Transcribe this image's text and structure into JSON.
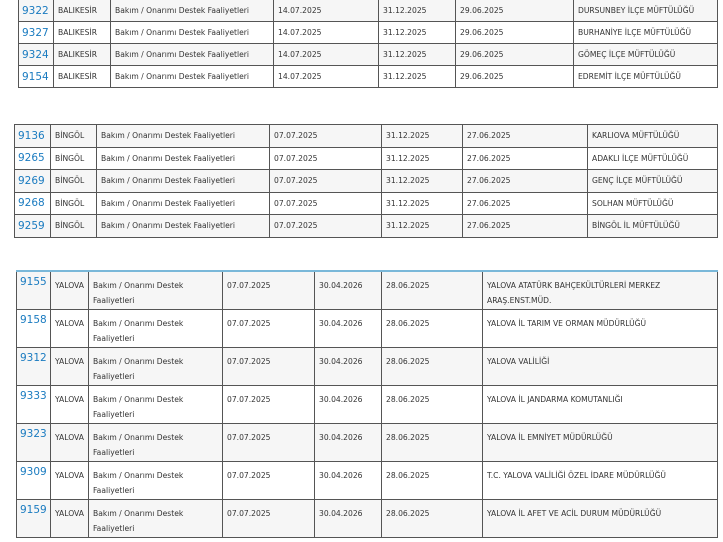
{
  "tables": [
    {
      "rows": [
        {
          "id": "9322",
          "province": "BALIKESİR",
          "type": "Bakım / Onarımı Destek Faaliyetleri",
          "start": "14.07.2025",
          "end": "31.12.2025",
          "date": "29.06.2025",
          "institution": "DURSUNBEY İLÇE MÜFTÜLÜĞÜ"
        },
        {
          "id": "9327",
          "province": "BALIKESİR",
          "type": "Bakım / Onarımı Destek Faaliyetleri",
          "start": "14.07.2025",
          "end": "31.12.2025",
          "date": "29.06.2025",
          "institution": "BURHANİYE İLÇE MÜFTÜLÜĞÜ"
        },
        {
          "id": "9324",
          "province": "BALIKESİR",
          "type": "Bakım / Onarımı Destek Faaliyetleri",
          "start": "14.07.2025",
          "end": "31.12.2025",
          "date": "29.06.2025",
          "institution": "GÖMEÇ İLÇE MÜFTÜLÜĞÜ"
        },
        {
          "id": "9154",
          "province": "BALIKESİR",
          "type": "Bakım / Onarımı Destek Faaliyetleri",
          "start": "14.07.2025",
          "end": "31.12.2025",
          "date": "29.06.2025",
          "institution": "EDREMİT İLÇE MÜFTÜLÜĞÜ"
        }
      ]
    },
    {
      "rows": [
        {
          "id": "9136",
          "province": "BİNGÖL",
          "type": "Bakım / Onarımı Destek Faaliyetleri",
          "start": "07.07.2025",
          "end": "31.12.2025",
          "date": "27.06.2025",
          "institution": "KARLIOVA MÜFTÜLÜĞÜ"
        },
        {
          "id": "9265",
          "province": "BİNGÖL",
          "type": "Bakım / Onarımı Destek Faaliyetleri",
          "start": "07.07.2025",
          "end": "31.12.2025",
          "date": "27.06.2025",
          "institution": "ADAKLI İLÇE MÜFTÜLÜĞÜ"
        },
        {
          "id": "9269",
          "province": "BİNGÖL",
          "type": "Bakım / Onarımı Destek Faaliyetleri",
          "start": "07.07.2025",
          "end": "31.12.2025",
          "date": "27.06.2025",
          "institution": "GENÇ İLÇE MÜFTÜLÜĞÜ"
        },
        {
          "id": "9268",
          "province": "BİNGÖL",
          "type": "Bakım / Onarımı Destek Faaliyetleri",
          "start": "07.07.2025",
          "end": "31.12.2025",
          "date": "27.06.2025",
          "institution": "SOLHAN MÜFTÜLÜĞÜ"
        },
        {
          "id": "9259",
          "province": "BİNGÖL",
          "type": "Bakım / Onarımı Destek Faaliyetleri",
          "start": "07.07.2025",
          "end": "31.12.2025",
          "date": "27.06.2025",
          "institution": "BİNGÖL İL MÜFTÜLÜĞÜ"
        }
      ]
    },
    {
      "rows": [
        {
          "id": "9155",
          "province": "YALOVA",
          "type": "Bakım / Onarımı Destek Faaliyetleri",
          "start": "07.07.2025",
          "end": "30.04.2026",
          "date": "28.06.2025",
          "institution": "YALOVA ATATÜRK BAHÇEKÜLTÜRLERİ MERKEZ ARAŞ.ENST.MÜD."
        },
        {
          "id": "9158",
          "province": "YALOVA",
          "type": "Bakım / Onarımı Destek Faaliyetleri",
          "start": "07.07.2025",
          "end": "30.04.2026",
          "date": "28.06.2025",
          "institution": "YALOVA İL TARIM VE ORMAN MÜDÜRLÜĞÜ"
        },
        {
          "id": "9312",
          "province": "YALOVA",
          "type": "Bakım / Onarımı Destek Faaliyetleri",
          "start": "07.07.2025",
          "end": "30.04.2026",
          "date": "28.06.2025",
          "institution": "YALOVA VALİLİĞİ"
        },
        {
          "id": "9333",
          "province": "YALOVA",
          "type": "Bakım / Onarımı Destek Faaliyetleri",
          "start": "07.07.2025",
          "end": "30.04.2026",
          "date": "28.06.2025",
          "institution": "YALOVA İL JANDARMA KOMUTANLIĞI"
        },
        {
          "id": "9323",
          "province": "YALOVA",
          "type": "Bakım / Onarımı Destek Faaliyetleri",
          "start": "07.07.2025",
          "end": "30.04.2026",
          "date": "28.06.2025",
          "institution": "YALOVA İL EMNİYET MÜDÜRLÜĞÜ"
        },
        {
          "id": "9309",
          "province": "YALOVA",
          "type": "Bakım / Onarımı Destek Faaliyetleri",
          "start": "07.07.2025",
          "end": "30.04.2026",
          "date": "28.06.2025",
          "institution": "T.C. YALOVA VALİLİĞİ ÖZEL İDARE MÜDÜRLÜĞÜ"
        },
        {
          "id": "9159",
          "province": "YALOVA",
          "type": "Bakım / Onarımı Destek Faaliyetleri",
          "start": "07.07.2025",
          "end": "30.04.2026",
          "date": "28.06.2025",
          "institution": "YALOVA İL AFET VE ACİL DURUM MÜDÜRLÜĞÜ"
        }
      ]
    }
  ]
}
